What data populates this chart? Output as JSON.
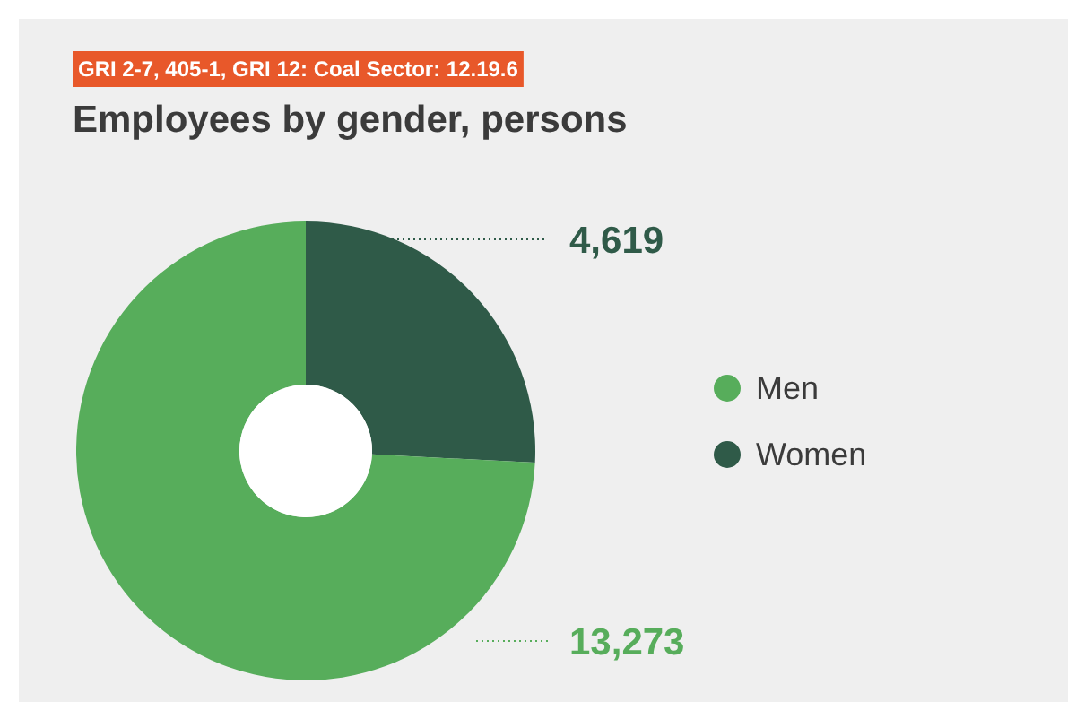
{
  "chart_data": {
    "type": "donut",
    "subtitle": "GRI 2-7, 405-1, GRI 12: Coal Sector: 12.19.6",
    "title": "Employees by gender, persons",
    "categories": [
      "Men",
      "Women"
    ],
    "values": [
      13273,
      4619
    ],
    "colors": [
      "#57ad5b",
      "#2f5a48"
    ],
    "value_labels": [
      "13,273",
      "4,619"
    ],
    "legend": "right"
  }
}
